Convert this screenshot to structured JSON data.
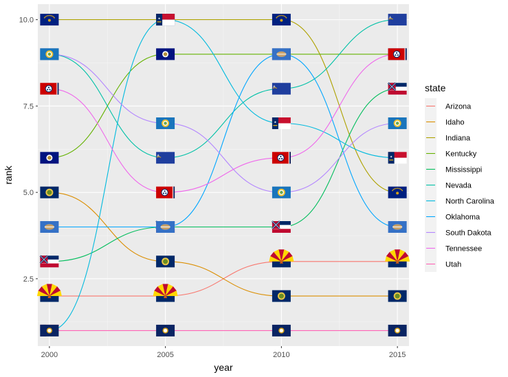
{
  "chart_data": {
    "type": "line",
    "xlabel": "year",
    "ylabel": "rank",
    "x": [
      2000,
      2005,
      2010,
      2015
    ],
    "x_ticks": [
      "2000",
      "2005",
      "2010",
      "2015"
    ],
    "y_ticks": [
      "2.5",
      "5.0",
      "7.5",
      "10.0"
    ],
    "y_tick_values": [
      2.5,
      5.0,
      7.5,
      10.0
    ],
    "xlim": [
      1999.5,
      2015.5
    ],
    "ylim": [
      0.55,
      10.45
    ],
    "grid": true,
    "legend": {
      "title": "state",
      "placement": "right"
    },
    "series": [
      {
        "name": "Arizona",
        "color": "#F8766D",
        "values": [
          2,
          2,
          3,
          3
        ]
      },
      {
        "name": "Idaho",
        "color": "#DB8E00",
        "values": [
          5,
          3,
          2,
          2
        ]
      },
      {
        "name": "Indiana",
        "color": "#AEA200",
        "values": [
          10,
          10,
          10,
          5
        ]
      },
      {
        "name": "Kentucky",
        "color": "#64B200",
        "values": [
          6,
          9,
          9,
          9
        ]
      },
      {
        "name": "Mississippi",
        "color": "#00BD5C",
        "values": [
          3,
          4,
          4,
          8
        ]
      },
      {
        "name": "Nevada",
        "color": "#00C1A7",
        "values": [
          9,
          6,
          8,
          10
        ]
      },
      {
        "name": "North Carolina",
        "color": "#00BADE",
        "values": [
          1,
          10,
          7,
          6
        ]
      },
      {
        "name": "Oklahoma",
        "color": "#00A6FF",
        "values": [
          4,
          4,
          9,
          4
        ]
      },
      {
        "name": "South Dakota",
        "color": "#B385FF",
        "values": [
          9,
          7,
          5,
          7
        ]
      },
      {
        "name": "Tennessee",
        "color": "#EF67EB",
        "values": [
          8,
          5,
          6,
          9
        ]
      },
      {
        "name": "Utah",
        "color": "#FF63B6",
        "values": [
          1,
          1,
          1,
          1
        ]
      }
    ]
  }
}
